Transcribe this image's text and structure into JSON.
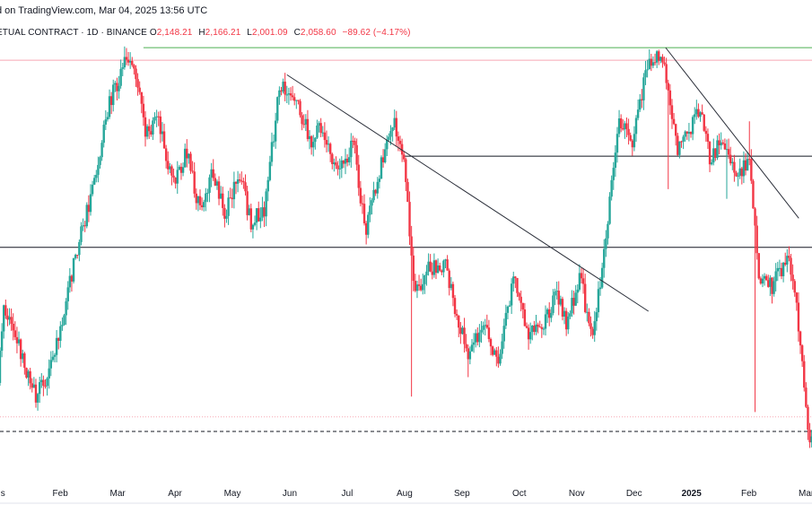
{
  "header": {
    "published": "d on TradingView.com, Mar 04, 2025 13:56 UTC",
    "symbol": "ETUAL CONTRACT · 1D · BINANCE",
    "ohlc": [
      {
        "label": "O",
        "value": "2,148.21"
      },
      {
        "label": "H",
        "value": "2,166.21"
      },
      {
        "label": "L",
        "value": "2,001.09"
      },
      {
        "label": "C",
        "value": "2,058.60"
      }
    ],
    "change": "−89.62 (−4.17%)"
  },
  "colors": {
    "up": "#26a69a",
    "down": "#f23645",
    "trendline": "#2a2e39",
    "support_resistance": "#131722",
    "top_line": "#4caf50",
    "pink_line": "#f7a8b4"
  },
  "chart_data": {
    "type": "candlestick",
    "x_tick_labels": [
      "s",
      "Feb",
      "Mar",
      "Apr",
      "May",
      "Jun",
      "Jul",
      "Aug",
      "Sep",
      "Oct",
      "Nov",
      "Dec",
      "2025",
      "Feb",
      "Mar"
    ],
    "x_tick_bold": [
      false,
      false,
      false,
      false,
      false,
      false,
      false,
      false,
      false,
      false,
      false,
      false,
      true,
      false,
      false
    ],
    "x_ticks_month_index": [
      0,
      1,
      2,
      3,
      4,
      5,
      6,
      7,
      8,
      9,
      10,
      11,
      12,
      13,
      14
    ],
    "x_range_month_index": [
      -0.05,
      14.1
    ],
    "y_range": [
      1850,
      4150
    ],
    "horizontal_lines": [
      {
        "name": "top-green-line",
        "y": 4080,
        "x_start": 2.45,
        "x_end": 14.1,
        "style": "solid",
        "color_key": "top_line"
      },
      {
        "name": "pink-top-line",
        "y": 4015,
        "x_start": -0.05,
        "x_end": 14.1,
        "style": "solid",
        "color_key": "pink_line"
      },
      {
        "name": "resistance-upper",
        "y": 3520,
        "x_start": 7.0,
        "x_end": 14.1,
        "style": "solid",
        "color_key": "support_resistance"
      },
      {
        "name": "resistance-middle",
        "y": 3050,
        "x_start": -0.05,
        "x_end": 14.1,
        "style": "solid",
        "color_key": "support_resistance"
      },
      {
        "name": "pink-bottom-line",
        "y": 2175,
        "x_start": -0.05,
        "x_end": 14.1,
        "style": "dotted",
        "color_key": "pink_line"
      },
      {
        "name": "dashed-bottom-line",
        "y": 2100,
        "x_start": -0.05,
        "x_end": 14.1,
        "style": "dashed",
        "color_key": "support_resistance"
      }
    ],
    "trendlines": [
      {
        "name": "trendline-1",
        "x1": 4.95,
        "y1": 3940,
        "x2": 11.25,
        "y2": 2720
      },
      {
        "name": "trendline-2",
        "x1": 11.55,
        "y1": 4080,
        "x2": 13.87,
        "y2": 3200
      }
    ],
    "anchors": [
      [
        -0.05,
        2350
      ],
      [
        0.05,
        2750
      ],
      [
        0.35,
        2500
      ],
      [
        0.6,
        2280
      ],
      [
        0.85,
        2400
      ],
      [
        1.3,
        3000
      ],
      [
        1.55,
        3300
      ],
      [
        1.9,
        3800
      ],
      [
        2.15,
        4000
      ],
      [
        2.35,
        3950
      ],
      [
        2.5,
        3650
      ],
      [
        2.75,
        3700
      ],
      [
        3.0,
        3380
      ],
      [
        3.25,
        3550
      ],
      [
        3.45,
        3250
      ],
      [
        3.7,
        3450
      ],
      [
        3.9,
        3200
      ],
      [
        4.15,
        3450
      ],
      [
        4.35,
        3180
      ],
      [
        4.6,
        3250
      ],
      [
        4.85,
        3880
      ],
      [
        5.1,
        3850
      ],
      [
        5.4,
        3600
      ],
      [
        5.6,
        3680
      ],
      [
        5.85,
        3450
      ],
      [
        6.15,
        3580
      ],
      [
        6.35,
        3130
      ],
      [
        6.6,
        3450
      ],
      [
        6.85,
        3700
      ],
      [
        7.05,
        3450
      ],
      [
        7.2,
        2800
      ],
      [
        7.45,
        2950
      ],
      [
        7.75,
        2950
      ],
      [
        7.95,
        2700
      ],
      [
        8.15,
        2500
      ],
      [
        8.4,
        2650
      ],
      [
        8.65,
        2450
      ],
      [
        8.95,
        2900
      ],
      [
        9.2,
        2600
      ],
      [
        9.45,
        2650
      ],
      [
        9.7,
        2820
      ],
      [
        9.85,
        2650
      ],
      [
        10.1,
        2900
      ],
      [
        10.3,
        2550
      ],
      [
        10.5,
        3000
      ],
      [
        10.75,
        3700
      ],
      [
        11.0,
        3600
      ],
      [
        11.2,
        3900
      ],
      [
        11.35,
        4050
      ],
      [
        11.55,
        4000
      ],
      [
        11.8,
        3550
      ],
      [
        12.0,
        3650
      ],
      [
        12.2,
        3800
      ],
      [
        12.35,
        3500
      ],
      [
        12.55,
        3600
      ],
      [
        12.85,
        3420
      ],
      [
        13.05,
        3500
      ],
      [
        13.2,
        2900
      ],
      [
        13.45,
        2850
      ],
      [
        13.7,
        3000
      ],
      [
        13.85,
        2800
      ],
      [
        14.0,
        2300
      ],
      [
        14.1,
        2058.6
      ]
    ],
    "wick_outliers": [
      {
        "x": 7.12,
        "low": 2280
      },
      {
        "x": 8.1,
        "low": 2380
      },
      {
        "x": 11.6,
        "low": 3350
      },
      {
        "x": 13.0,
        "high": 3700
      },
      {
        "x": 13.12,
        "low": 2200
      },
      {
        "x": 12.62,
        "low": 3300
      }
    ]
  }
}
